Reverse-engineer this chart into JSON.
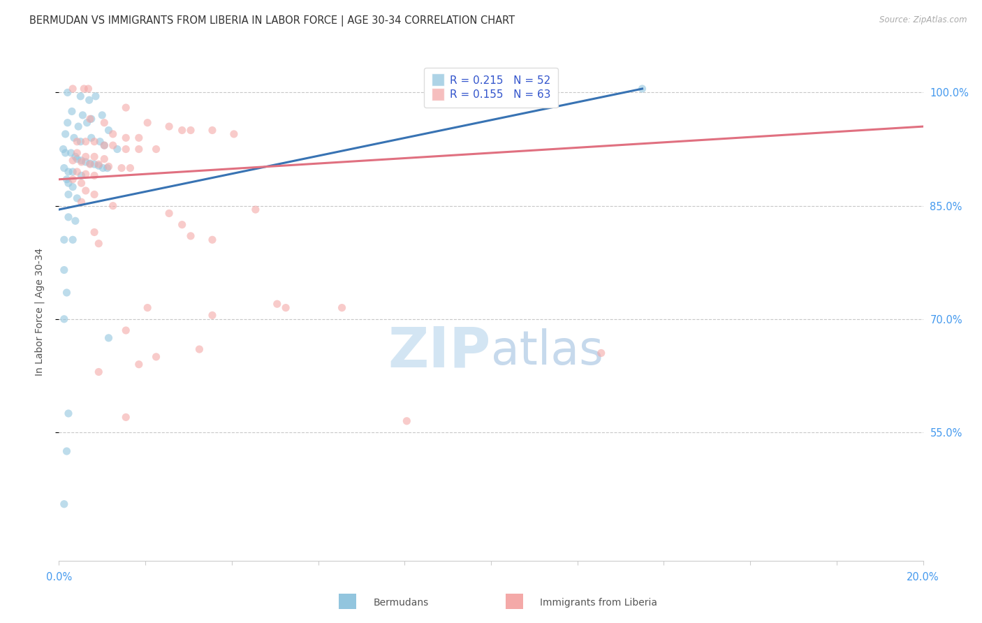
{
  "title": "BERMUDAN VS IMMIGRANTS FROM LIBERIA IN LABOR FORCE | AGE 30-34 CORRELATION CHART",
  "source": "Source: ZipAtlas.com",
  "ylabel": "In Labor Force | Age 30-34",
  "xlim": [
    0.0,
    20.0
  ],
  "ylim": [
    38.0,
    104.0
  ],
  "legend_r_blue": "R = 0.215",
  "legend_n_blue": "N = 52",
  "legend_r_pink": "R = 0.155",
  "legend_n_pink": "N = 63",
  "blue_color": "#92c5de",
  "pink_color": "#f4a9a8",
  "blue_line_color": "#3873b3",
  "pink_line_color": "#e07080",
  "watermark_zip": "ZIP",
  "watermark_atlas": "atlas",
  "ytick_vals": [
    55.0,
    70.0,
    85.0,
    100.0
  ],
  "xtick_vals": [
    0.0,
    2.0,
    4.0,
    6.0,
    8.0,
    10.0,
    12.0,
    14.0,
    16.0,
    18.0,
    20.0
  ],
  "blue_scatter": [
    [
      0.2,
      100.0
    ],
    [
      0.5,
      99.5
    ],
    [
      0.7,
      99.0
    ],
    [
      0.85,
      99.5
    ],
    [
      0.3,
      97.5
    ],
    [
      0.55,
      97.0
    ],
    [
      0.75,
      96.5
    ],
    [
      1.0,
      97.0
    ],
    [
      0.2,
      96.0
    ],
    [
      0.45,
      95.5
    ],
    [
      0.65,
      96.0
    ],
    [
      1.15,
      95.0
    ],
    [
      0.15,
      94.5
    ],
    [
      0.35,
      94.0
    ],
    [
      0.5,
      93.5
    ],
    [
      0.75,
      94.0
    ],
    [
      0.95,
      93.5
    ],
    [
      1.05,
      93.0
    ],
    [
      1.35,
      92.5
    ],
    [
      0.1,
      92.5
    ],
    [
      0.15,
      92.0
    ],
    [
      0.28,
      92.0
    ],
    [
      0.38,
      91.5
    ],
    [
      0.42,
      91.2
    ],
    [
      0.52,
      91.0
    ],
    [
      0.62,
      90.8
    ],
    [
      0.72,
      90.6
    ],
    [
      0.82,
      90.5
    ],
    [
      0.92,
      90.3
    ],
    [
      1.02,
      90.0
    ],
    [
      1.12,
      90.0
    ],
    [
      0.12,
      90.0
    ],
    [
      0.22,
      89.5
    ],
    [
      0.32,
      89.5
    ],
    [
      0.52,
      89.0
    ],
    [
      0.18,
      88.5
    ],
    [
      0.22,
      88.0
    ],
    [
      0.32,
      87.5
    ],
    [
      0.22,
      86.5
    ],
    [
      0.42,
      86.0
    ],
    [
      0.22,
      83.5
    ],
    [
      0.38,
      83.0
    ],
    [
      0.12,
      80.5
    ],
    [
      0.32,
      80.5
    ],
    [
      0.12,
      76.5
    ],
    [
      0.18,
      73.5
    ],
    [
      0.12,
      70.0
    ],
    [
      1.15,
      67.5
    ],
    [
      0.22,
      57.5
    ],
    [
      0.18,
      52.5
    ],
    [
      0.12,
      45.5
    ],
    [
      13.5,
      100.5
    ]
  ],
  "pink_scatter": [
    [
      0.32,
      100.5
    ],
    [
      0.58,
      100.5
    ],
    [
      0.68,
      100.5
    ],
    [
      1.55,
      98.0
    ],
    [
      0.72,
      96.5
    ],
    [
      1.05,
      96.0
    ],
    [
      2.05,
      96.0
    ],
    [
      2.55,
      95.5
    ],
    [
      2.85,
      95.0
    ],
    [
      3.05,
      95.0
    ],
    [
      3.55,
      95.0
    ],
    [
      4.05,
      94.5
    ],
    [
      1.25,
      94.5
    ],
    [
      1.55,
      94.0
    ],
    [
      1.85,
      94.0
    ],
    [
      0.42,
      93.5
    ],
    [
      0.62,
      93.5
    ],
    [
      0.82,
      93.5
    ],
    [
      1.05,
      93.0
    ],
    [
      1.25,
      93.0
    ],
    [
      1.55,
      92.5
    ],
    [
      1.85,
      92.5
    ],
    [
      2.25,
      92.5
    ],
    [
      0.42,
      92.0
    ],
    [
      0.62,
      91.5
    ],
    [
      0.82,
      91.5
    ],
    [
      1.05,
      91.2
    ],
    [
      0.32,
      91.0
    ],
    [
      0.52,
      90.8
    ],
    [
      0.72,
      90.5
    ],
    [
      0.92,
      90.5
    ],
    [
      1.15,
      90.2
    ],
    [
      1.45,
      90.0
    ],
    [
      1.65,
      90.0
    ],
    [
      0.42,
      89.5
    ],
    [
      0.62,
      89.2
    ],
    [
      0.82,
      89.0
    ],
    [
      0.32,
      88.5
    ],
    [
      0.52,
      88.0
    ],
    [
      0.62,
      87.0
    ],
    [
      0.82,
      86.5
    ],
    [
      0.52,
      85.5
    ],
    [
      1.25,
      85.0
    ],
    [
      4.55,
      84.5
    ],
    [
      2.55,
      84.0
    ],
    [
      2.85,
      82.5
    ],
    [
      0.82,
      81.5
    ],
    [
      3.05,
      81.0
    ],
    [
      3.55,
      80.5
    ],
    [
      0.92,
      80.0
    ],
    [
      5.05,
      72.0
    ],
    [
      5.25,
      71.5
    ],
    [
      6.55,
      71.5
    ],
    [
      3.55,
      70.5
    ],
    [
      1.55,
      68.5
    ],
    [
      3.25,
      66.0
    ],
    [
      12.55,
      65.5
    ],
    [
      2.25,
      65.0
    ],
    [
      1.85,
      64.0
    ],
    [
      0.92,
      63.0
    ],
    [
      2.05,
      71.5
    ],
    [
      1.55,
      57.0
    ],
    [
      8.05,
      56.5
    ]
  ],
  "blue_trendline": [
    [
      0.0,
      84.5
    ],
    [
      13.5,
      100.5
    ]
  ],
  "pink_trendline": [
    [
      0.0,
      88.5
    ],
    [
      20.0,
      95.5
    ]
  ],
  "grid_color": "#c8c8c8",
  "background_color": "#ffffff",
  "title_fontsize": 10.5,
  "tick_color": "#4499ee",
  "legend_label_color": "#3355cc"
}
